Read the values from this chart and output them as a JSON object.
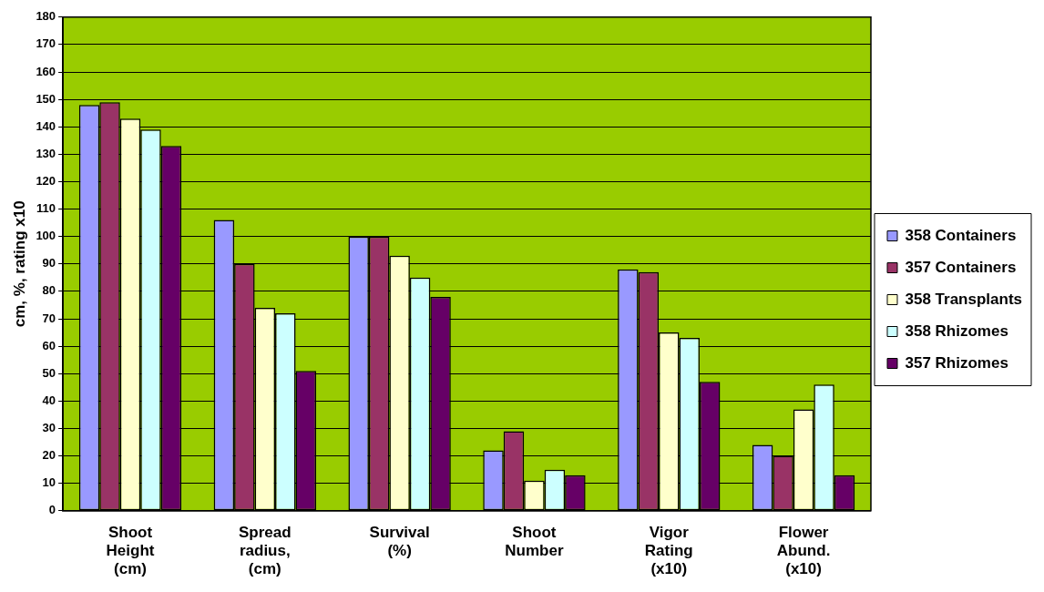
{
  "chart_data": {
    "type": "bar",
    "ylabel": "cm, %, rating x10",
    "categories": [
      "Shoot Height (cm)",
      "Spread radius, (cm)",
      "Survival (%)",
      "Shoot Number",
      "Vigor Rating (x10)",
      "Flower Abund. (x10)"
    ],
    "series": [
      {
        "name": "358 Containers",
        "color": "#9999ff",
        "values": [
          148,
          106,
          100,
          22,
          88,
          24
        ]
      },
      {
        "name": "357 Containers",
        "color": "#993366",
        "values": [
          149,
          90,
          100,
          29,
          87,
          20
        ]
      },
      {
        "name": "358 Transplants",
        "color": "#ffffcc",
        "values": [
          143,
          74,
          93,
          11,
          65,
          37
        ]
      },
      {
        "name": "358 Rhizomes",
        "color": "#ccffff",
        "values": [
          139,
          72,
          85,
          15,
          63,
          46
        ]
      },
      {
        "name": "357 Rhizomes",
        "color": "#660066",
        "values": [
          133,
          51,
          78,
          13,
          47,
          13
        ]
      }
    ],
    "ylim": [
      0,
      180
    ],
    "yticks": [
      0,
      10,
      20,
      30,
      40,
      50,
      60,
      70,
      80,
      90,
      100,
      110,
      120,
      130,
      140,
      150,
      160,
      170,
      180
    ],
    "grid": "y",
    "legend": "right"
  }
}
